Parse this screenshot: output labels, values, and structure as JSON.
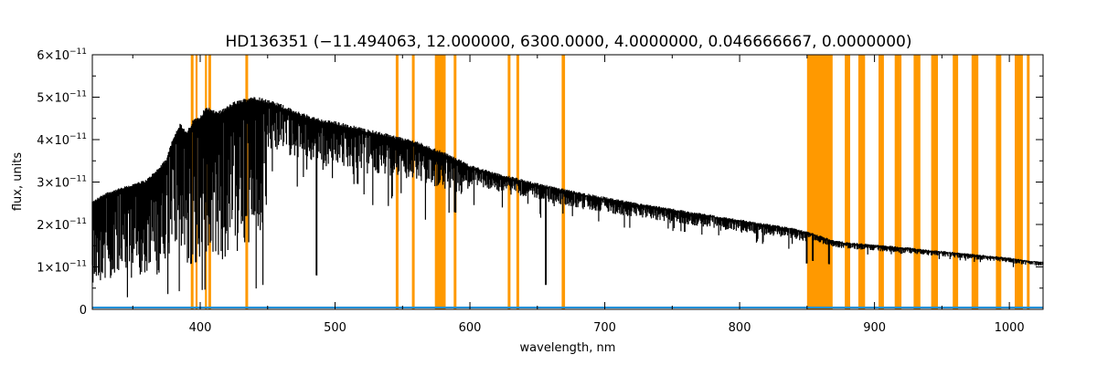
{
  "chart_data": {
    "type": "line",
    "title": "HD136351   (−11.494063, 12.000000, 6300.0000, 4.0000000, 0.046666667, 0.0000000)",
    "xlabel": "wavelength, nm",
    "ylabel": "flux, units",
    "xlim": [
      320,
      1025
    ],
    "ylim": [
      0,
      6e-11
    ],
    "x_ticks": [
      400,
      500,
      600,
      700,
      800,
      900,
      1000
    ],
    "y_ticks": [
      {
        "value": 0,
        "label": "0"
      },
      {
        "value": 1e-11,
        "mantissa": "1×10",
        "exponent": "−11"
      },
      {
        "value": 2e-11,
        "mantissa": "2×10",
        "exponent": "−11"
      },
      {
        "value": 3e-11,
        "mantissa": "3×10",
        "exponent": "−11"
      },
      {
        "value": 4e-11,
        "mantissa": "4×10",
        "exponent": "−11"
      },
      {
        "value": 5e-11,
        "mantissa": "5×10",
        "exponent": "−11"
      },
      {
        "value": 6e-11,
        "mantissa": "6×10",
        "exponent": "−11"
      }
    ],
    "colors": {
      "flux": "#000000",
      "masked": "#ff9900",
      "error": "#1f8fd8"
    },
    "series": [
      {
        "key": "flux",
        "x": [
          320,
          330,
          340,
          350,
          360,
          370,
          375,
          380,
          385,
          390,
          395,
          400,
          405,
          410,
          415,
          420,
          425,
          430,
          435,
          440,
          450,
          460,
          470,
          480,
          490,
          500,
          520,
          540,
          560,
          580,
          600,
          620,
          640,
          660,
          680,
          700,
          720,
          740,
          760,
          780,
          800,
          820,
          840,
          850,
          870,
          880,
          900,
          920,
          940,
          960,
          980,
          1000,
          1010,
          1025
        ],
        "y": [
          2.5e-11,
          2.7e-11,
          2.8e-11,
          2.9e-11,
          3e-11,
          3.3e-11,
          3.5e-11,
          4e-11,
          4.3e-11,
          4.1e-11,
          4.4e-11,
          4.5e-11,
          4.7e-11,
          4.6e-11,
          4.6e-11,
          4.7e-11,
          4.8e-11,
          4.85e-11,
          4.9e-11,
          4.95e-11,
          4.85e-11,
          4.75e-11,
          4.6e-11,
          4.5e-11,
          4.4e-11,
          4.35e-11,
          4.2e-11,
          4.05e-11,
          3.9e-11,
          3.65e-11,
          3.35e-11,
          3.15e-11,
          3e-11,
          2.85e-11,
          2.72e-11,
          2.6e-11,
          2.48e-11,
          2.38e-11,
          2.28e-11,
          2.18e-11,
          2.08e-11,
          1.98e-11,
          1.88e-11,
          1.8e-11,
          1.6e-11,
          1.55e-11,
          1.5e-11,
          1.45e-11,
          1.38e-11,
          1.32e-11,
          1.26e-11,
          1.2e-11,
          1.15e-11,
          1.1e-11
        ]
      }
    ],
    "masked_bands": [
      [
        393,
        395
      ],
      [
        396.5,
        398
      ],
      [
        403.5,
        405
      ],
      [
        406,
        408
      ],
      [
        433.5,
        435.5
      ],
      [
        545,
        547
      ],
      [
        557,
        559
      ],
      [
        574,
        582
      ],
      [
        588,
        590
      ],
      [
        628,
        630
      ],
      [
        634.5,
        636.5
      ],
      [
        668,
        670.5
      ],
      [
        850,
        869
      ],
      [
        878,
        882
      ],
      [
        888,
        893
      ],
      [
        903,
        907
      ],
      [
        915,
        920
      ],
      [
        929,
        934
      ],
      [
        942,
        947
      ],
      [
        958,
        962
      ],
      [
        972,
        977
      ],
      [
        990,
        994
      ],
      [
        1004,
        1010
      ],
      [
        1013,
        1015
      ]
    ]
  }
}
